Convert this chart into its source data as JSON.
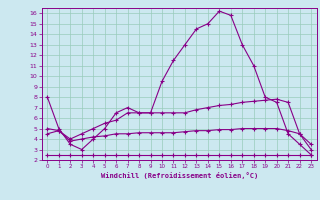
{
  "xlabel": "Windchill (Refroidissement éolien,°C)",
  "bg_color": "#cce8f0",
  "grid_color": "#99ccbb",
  "line_color": "#880088",
  "x": [
    0,
    1,
    2,
    3,
    4,
    5,
    6,
    7,
    8,
    9,
    10,
    11,
    12,
    13,
    14,
    15,
    16,
    17,
    18,
    19,
    20,
    21,
    22,
    23
  ],
  "line1": [
    8,
    5,
    3.5,
    3,
    4,
    5,
    6.5,
    7,
    6.5,
    6.5,
    9.5,
    11.5,
    13,
    14.5,
    15,
    16.2,
    15.8,
    13,
    11,
    8,
    7.5,
    4.5,
    3.5,
    2.5
  ],
  "line2": [
    5,
    4.8,
    4,
    4.5,
    5,
    5.5,
    5.8,
    6.5,
    6.5,
    6.5,
    6.5,
    6.5,
    6.5,
    6.8,
    7,
    7.2,
    7.3,
    7.5,
    7.6,
    7.7,
    7.8,
    7.5,
    4.5,
    3
  ],
  "line3": [
    4.5,
    4.8,
    3.8,
    4,
    4.2,
    4.3,
    4.5,
    4.5,
    4.6,
    4.6,
    4.6,
    4.6,
    4.7,
    4.8,
    4.8,
    4.9,
    4.9,
    5.0,
    5.0,
    5.0,
    5.0,
    4.8,
    4.5,
    3.5
  ],
  "line4": [
    2.5,
    2.5,
    2.5,
    2.5,
    2.5,
    2.5,
    2.5,
    2.5,
    2.5,
    2.5,
    2.5,
    2.5,
    2.5,
    2.5,
    2.5,
    2.5,
    2.5,
    2.5,
    2.5,
    2.5,
    2.5,
    2.5,
    2.5,
    2.5
  ],
  "ylim": [
    2,
    16.5
  ],
  "xlim": [
    -0.5,
    23.5
  ],
  "yticks": [
    2,
    3,
    4,
    5,
    6,
    7,
    8,
    9,
    10,
    11,
    12,
    13,
    14,
    15,
    16
  ],
  "xticks": [
    0,
    1,
    2,
    3,
    4,
    5,
    6,
    7,
    8,
    9,
    10,
    11,
    12,
    13,
    14,
    15,
    16,
    17,
    18,
    19,
    20,
    21,
    22,
    23
  ]
}
